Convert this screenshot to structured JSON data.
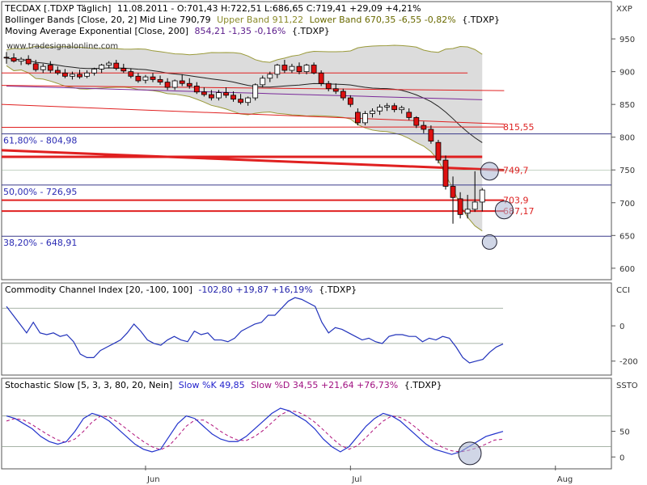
{
  "chart_data": [
    {
      "type": "candlestick",
      "panel": "price",
      "title_main": "TECDAX [.TDXP  Täglich]",
      "title_ohlc": "11.08.2011 - O:701,43 H:722,51 L:686,65 C:719,41 +29,09 +4,21%",
      "bb_label": "Bollinger Bands [Close, 20, 2] Mid Line 790,79",
      "bb_upper": "Upper Band 911,22",
      "bb_lower": "Lower Band 670,35 -6,55 -0,82%",
      "bb_sym": "{.TDXP}",
      "ema_label": "Moving Average Exponential [Close, 200]",
      "ema_vals": "854,21 -1,35 -0,16%",
      "ema_sym": "{.TDXP}",
      "watermark": "www.tradesignalonline.com",
      "axis_label": "XXP",
      "y_ticks": [
        950,
        900,
        850,
        800,
        750,
        700,
        650,
        600
      ],
      "ylim": [
        585,
        960
      ],
      "x_ticks": [
        "Jun",
        "Jul",
        "Aug"
      ],
      "x_tick_index": [
        19,
        47,
        75
      ],
      "fib_levels": [
        {
          "label": "61,80% - 804,98",
          "value": 804.98
        },
        {
          "label": "50,00% - 726,95",
          "value": 726.95
        },
        {
          "label": "38,20% - 648,91",
          "value": 648.91
        }
      ],
      "level_labels": [
        {
          "label": "815,55",
          "value": 815.55
        },
        {
          "label": "749,7",
          "value": 749.7
        },
        {
          "label": "703,9",
          "value": 703.9
        },
        {
          "label": "687,17",
          "value": 687.17
        }
      ],
      "candles": [
        {
          "o": 922,
          "h": 930,
          "l": 912,
          "c": 921
        },
        {
          "o": 921,
          "h": 928,
          "l": 914,
          "c": 916
        },
        {
          "o": 916,
          "h": 922,
          "l": 910,
          "c": 919
        },
        {
          "o": 919,
          "h": 925,
          "l": 910,
          "c": 912
        },
        {
          "o": 912,
          "h": 918,
          "l": 900,
          "c": 903
        },
        {
          "o": 903,
          "h": 912,
          "l": 898,
          "c": 908
        },
        {
          "o": 910,
          "h": 916,
          "l": 898,
          "c": 902
        },
        {
          "o": 902,
          "h": 908,
          "l": 895,
          "c": 898
        },
        {
          "o": 898,
          "h": 904,
          "l": 890,
          "c": 893
        },
        {
          "o": 893,
          "h": 900,
          "l": 888,
          "c": 896
        },
        {
          "o": 896,
          "h": 903,
          "l": 889,
          "c": 892
        },
        {
          "o": 893,
          "h": 902,
          "l": 890,
          "c": 898
        },
        {
          "o": 898,
          "h": 906,
          "l": 894,
          "c": 904
        },
        {
          "o": 904,
          "h": 912,
          "l": 898,
          "c": 910
        },
        {
          "o": 910,
          "h": 916,
          "l": 905,
          "c": 913
        },
        {
          "o": 913,
          "h": 918,
          "l": 902,
          "c": 905
        },
        {
          "o": 905,
          "h": 912,
          "l": 898,
          "c": 901
        },
        {
          "o": 900,
          "h": 905,
          "l": 890,
          "c": 893
        },
        {
          "o": 893,
          "h": 898,
          "l": 883,
          "c": 886
        },
        {
          "o": 887,
          "h": 895,
          "l": 882,
          "c": 892
        },
        {
          "o": 892,
          "h": 898,
          "l": 884,
          "c": 888
        },
        {
          "o": 888,
          "h": 894,
          "l": 880,
          "c": 884
        },
        {
          "o": 884,
          "h": 890,
          "l": 872,
          "c": 876
        },
        {
          "o": 876,
          "h": 888,
          "l": 872,
          "c": 886
        },
        {
          "o": 886,
          "h": 896,
          "l": 878,
          "c": 882
        },
        {
          "o": 882,
          "h": 890,
          "l": 874,
          "c": 878
        },
        {
          "o": 878,
          "h": 884,
          "l": 866,
          "c": 869
        },
        {
          "o": 869,
          "h": 876,
          "l": 862,
          "c": 865
        },
        {
          "o": 865,
          "h": 872,
          "l": 856,
          "c": 860
        },
        {
          "o": 860,
          "h": 872,
          "l": 856,
          "c": 868
        },
        {
          "o": 868,
          "h": 876,
          "l": 860,
          "c": 864
        },
        {
          "o": 864,
          "h": 870,
          "l": 854,
          "c": 858
        },
        {
          "o": 858,
          "h": 866,
          "l": 850,
          "c": 853
        },
        {
          "o": 853,
          "h": 862,
          "l": 848,
          "c": 860
        },
        {
          "o": 860,
          "h": 882,
          "l": 856,
          "c": 880
        },
        {
          "o": 880,
          "h": 894,
          "l": 876,
          "c": 890
        },
        {
          "o": 890,
          "h": 900,
          "l": 884,
          "c": 896
        },
        {
          "o": 896,
          "h": 912,
          "l": 890,
          "c": 910
        },
        {
          "o": 910,
          "h": 918,
          "l": 898,
          "c": 902
        },
        {
          "o": 902,
          "h": 912,
          "l": 898,
          "c": 908
        },
        {
          "o": 908,
          "h": 914,
          "l": 896,
          "c": 900
        },
        {
          "o": 900,
          "h": 912,
          "l": 896,
          "c": 910
        },
        {
          "o": 910,
          "h": 914,
          "l": 896,
          "c": 898
        },
        {
          "o": 898,
          "h": 902,
          "l": 878,
          "c": 882
        },
        {
          "o": 882,
          "h": 886,
          "l": 870,
          "c": 874
        },
        {
          "o": 874,
          "h": 882,
          "l": 866,
          "c": 870
        },
        {
          "o": 870,
          "h": 874,
          "l": 856,
          "c": 860
        },
        {
          "o": 860,
          "h": 864,
          "l": 846,
          "c": 850
        },
        {
          "o": 838,
          "h": 844,
          "l": 818,
          "c": 822
        },
        {
          "o": 822,
          "h": 840,
          "l": 818,
          "c": 836
        },
        {
          "o": 836,
          "h": 844,
          "l": 830,
          "c": 840
        },
        {
          "o": 840,
          "h": 850,
          "l": 834,
          "c": 846
        },
        {
          "o": 846,
          "h": 852,
          "l": 840,
          "c": 848
        },
        {
          "o": 848,
          "h": 852,
          "l": 838,
          "c": 842
        },
        {
          "o": 842,
          "h": 848,
          "l": 836,
          "c": 845
        },
        {
          "o": 838,
          "h": 844,
          "l": 826,
          "c": 830
        },
        {
          "o": 830,
          "h": 832,
          "l": 814,
          "c": 818
        },
        {
          "o": 818,
          "h": 824,
          "l": 806,
          "c": 812
        },
        {
          "o": 812,
          "h": 818,
          "l": 790,
          "c": 794
        },
        {
          "o": 792,
          "h": 796,
          "l": 760,
          "c": 765
        },
        {
          "o": 765,
          "h": 772,
          "l": 720,
          "c": 725
        },
        {
          "o": 725,
          "h": 740,
          "l": 668,
          "c": 708
        },
        {
          "o": 706,
          "h": 716,
          "l": 676,
          "c": 682
        },
        {
          "o": 684,
          "h": 712,
          "l": 676,
          "c": 690
        },
        {
          "o": 690,
          "h": 748,
          "l": 686,
          "c": 701
        },
        {
          "o": 701,
          "h": 722.51,
          "l": 686.65,
          "c": 719.41
        }
      ]
    },
    {
      "type": "line",
      "panel": "cci",
      "title": "Commodity Channel Index [20, -100, 100]",
      "values_text": "-102,80 +19,87 +16,19%",
      "sym": "{.TDXP}",
      "axis_label": "CCI",
      "y_ticks": [
        0,
        -200
      ],
      "ylim": [
        -270,
        170
      ],
      "levels": [
        100,
        -100
      ],
      "series": [
        {
          "values": [
            110,
            60,
            10,
            -40,
            20,
            -40,
            -50,
            -40,
            -60,
            -50,
            -90,
            -160,
            -180,
            -180,
            -140,
            -120,
            -100,
            -80,
            -40,
            10,
            -30,
            -80,
            -100,
            -110,
            -80,
            -60,
            -80,
            -90,
            -30,
            -50,
            -40,
            -80,
            -80,
            -90,
            -70,
            -30,
            -10,
            10,
            20,
            60,
            60,
            100,
            140,
            160,
            150,
            130,
            110,
            20,
            -40,
            -10,
            -20,
            -40,
            -60,
            -80,
            -70,
            -90,
            -100,
            -60,
            -50,
            -50,
            -60,
            -60,
            -90,
            -70,
            -80,
            -60,
            -70,
            -120,
            -180,
            -210,
            -200,
            -190,
            -150,
            -120,
            -102.8
          ]
        }
      ]
    },
    {
      "type": "line",
      "panel": "stochastic",
      "title": "Stochastic Slow [5, 3, 3, 80, 20, Nein]",
      "k_label": "Slow %K 49,85",
      "d_label": "Slow %D 34,55 +21,64 +76,73%",
      "sym": "{.TDXP}",
      "axis_label": "SSTO",
      "y_ticks": [
        50,
        0
      ],
      "ylim": [
        -20,
        125
      ],
      "levels": [
        80,
        20
      ],
      "series": [
        {
          "name": "Slow %K",
          "values": [
            80,
            75,
            65,
            55,
            40,
            30,
            25,
            30,
            50,
            75,
            85,
            80,
            70,
            55,
            40,
            25,
            15,
            10,
            15,
            40,
            65,
            80,
            75,
            60,
            45,
            35,
            30,
            30,
            40,
            55,
            70,
            85,
            95,
            90,
            80,
            70,
            55,
            35,
            20,
            10,
            20,
            40,
            60,
            75,
            85,
            80,
            70,
            55,
            40,
            25,
            15,
            10,
            5,
            10,
            20,
            30,
            40,
            45,
            49.85
          ]
        },
        {
          "name": "Slow %D",
          "values": [
            70,
            75,
            72,
            63,
            52,
            42,
            33,
            28,
            35,
            50,
            68,
            80,
            78,
            68,
            55,
            42,
            30,
            20,
            14,
            22,
            40,
            60,
            72,
            72,
            62,
            50,
            40,
            33,
            32,
            40,
            52,
            67,
            82,
            90,
            88,
            80,
            68,
            53,
            37,
            23,
            15,
            22,
            38,
            55,
            70,
            80,
            77,
            68,
            55,
            40,
            28,
            18,
            12,
            10,
            13,
            18,
            25,
            33,
            34.55
          ]
        }
      ]
    }
  ]
}
